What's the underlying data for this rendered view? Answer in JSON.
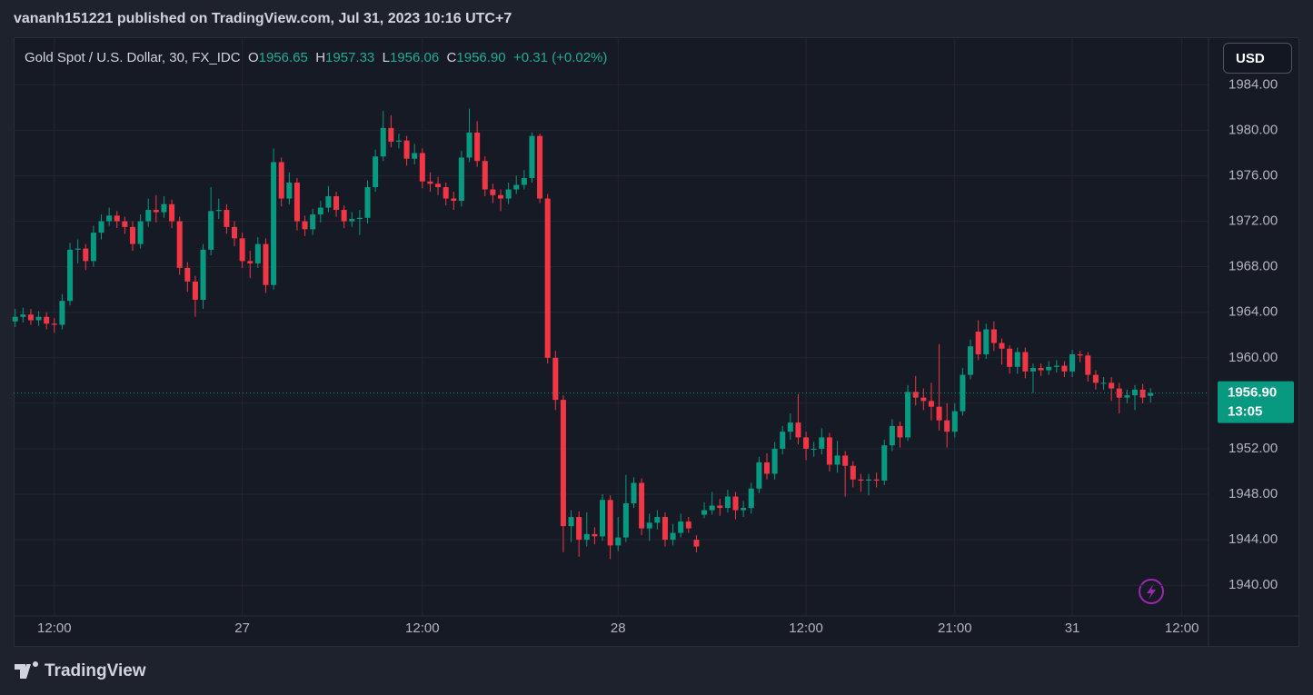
{
  "header": {
    "title": "vananh151221 published on TradingView.com, Jul 31, 2023 10:16 UTC+7"
  },
  "footer": {
    "logo": "TradingView"
  },
  "currency_button": "USD",
  "chart_data": {
    "type": "candlestick",
    "symbol": "Gold Spot / U.S. Dollar, 30, FX_IDC",
    "ohlc_names": [
      "O",
      "H",
      "L",
      "C"
    ],
    "ohlc_values": [
      "1956.65",
      "1957.33",
      "1956.06",
      "1956.90"
    ],
    "change": "+0.31 (+0.02%)",
    "last_price": {
      "value": 1956.9,
      "label": "1956.90"
    },
    "countdown": "13:05",
    "up_color": "#089981",
    "down_color": "#f23645",
    "grid": true,
    "ylim": [
      1937.3,
      1988.1
    ],
    "yticks": [
      {
        "value": 1940,
        "label": "1940.00"
      },
      {
        "value": 1944,
        "label": "1944.00"
      },
      {
        "value": 1948,
        "label": "1948.00"
      },
      {
        "value": 1952,
        "label": "1952.00"
      },
      {
        "value": 1956,
        "label": "1956.00"
      },
      {
        "value": 1960,
        "label": "1960.00"
      },
      {
        "value": 1964,
        "label": "1964.00"
      },
      {
        "value": 1968,
        "label": "1968.00"
      },
      {
        "value": 1972,
        "label": "1972.00"
      },
      {
        "value": 1976,
        "label": "1976.00"
      },
      {
        "value": 1980,
        "label": "1980.00"
      },
      {
        "value": 1984,
        "label": "1984.00"
      }
    ],
    "xlim": [
      -0.2,
      152.4
    ],
    "xticks": [
      {
        "value": 5,
        "label": "12:00"
      },
      {
        "value": 29,
        "label": "27"
      },
      {
        "value": 52,
        "label": "12:00"
      },
      {
        "value": 77,
        "label": "28"
      },
      {
        "value": 101,
        "label": "12:00"
      },
      {
        "value": 120,
        "label": "21:00"
      },
      {
        "value": 135,
        "label": "31"
      },
      {
        "value": 149,
        "label": "12:00"
      }
    ],
    "open": [
      1963.2,
      1963.6,
      1963.8,
      1963.3,
      1963.6,
      1963.0,
      1962.9,
      1965.0,
      1969.5,
      1969.6,
      1968.5,
      1971.0,
      1972.0,
      1972.5,
      1972.0,
      1971.5,
      1970.0,
      1972.0,
      1973.0,
      1972.8,
      1973.5,
      1972.0,
      1967.9,
      1966.7,
      1965.1,
      1969.5,
      1972.9,
      1973.0,
      1971.5,
      1970.5,
      1968.5,
      1968.3,
      1970.0,
      1966.4,
      1977.2,
      1974.0,
      1975.4,
      1972.0,
      1971.3,
      1972.6,
      1973.2,
      1974.2,
      1973.0,
      1972.0,
      1972.2,
      1972.3,
      1975.0,
      1977.7,
      1980.2,
      1979.0,
      1979.1,
      1977.5,
      1978.0,
      1975.5,
      1975.3,
      1975.0,
      1974.0,
      1973.8,
      1977.6,
      1979.8,
      1977.3,
      1974.8,
      1974.3,
      1974.0,
      1974.8,
      1975.2,
      1975.8,
      1979.5,
      1974.0,
      1960.0,
      1956.3,
      1945.2,
      1946.0,
      1944.0,
      1944.5,
      1944.3,
      1947.5,
      1943.5,
      1944.2,
      1947.2,
      1949.0,
      1945.0,
      1945.5,
      1946.0,
      1944.0,
      1944.6,
      1945.6,
      1944.0,
      1946.2,
      1946.6,
      1947.0,
      1946.8,
      1947.8,
      1946.6,
      1946.8,
      1948.5,
      1950.8,
      1949.8,
      1952.0,
      1953.5,
      1954.3,
      1953.0,
      1952.0,
      1952.0,
      1953.0,
      1950.6,
      1951.4,
      1950.5,
      1949.3,
      1949.2,
      1949.3,
      1949.2,
      1952.3,
      1954.0,
      1953.0,
      1957.0,
      1956.5,
      1956.2,
      1955.7,
      1954.5,
      1953.5,
      1955.3,
      1958.5,
      1962.3,
      1960.3,
      1962.5,
      1961.3,
      1960.8,
      1959.2,
      1960.5,
      1958.8,
      1959.1,
      1958.9,
      1959.2,
      1959.3,
      1958.8,
      1960.3,
      1960.2,
      1958.5,
      1957.8,
      1957.8,
      1957.3,
      1956.5,
      1956.7,
      1957.2,
      1956.65
    ],
    "high": [
      1964.3,
      1964.4,
      1964.3,
      1964.1,
      1964.0,
      1963.5,
      1965.6,
      1970.1,
      1970.4,
      1970.0,
      1971.6,
      1972.6,
      1973.2,
      1972.9,
      1972.4,
      1972.0,
      1972.6,
      1974.0,
      1974.3,
      1974.2,
      1973.9,
      1972.4,
      1968.4,
      1967.2,
      1970.0,
      1975.0,
      1974.0,
      1973.5,
      1972.0,
      1971.0,
      1969.4,
      1970.6,
      1970.5,
      1978.4,
      1977.6,
      1976.3,
      1975.8,
      1972.5,
      1973.1,
      1973.8,
      1975.1,
      1974.6,
      1973.4,
      1972.8,
      1973.0,
      1975.6,
      1978.3,
      1981.7,
      1981.3,
      1979.7,
      1979.5,
      1978.8,
      1978.4,
      1976.3,
      1975.9,
      1975.4,
      1974.6,
      1978.2,
      1981.9,
      1980.8,
      1977.7,
      1975.3,
      1974.8,
      1975.4,
      1976.0,
      1976.5,
      1979.8,
      1979.7,
      1974.4,
      1960.6,
      1956.7,
      1946.6,
      1946.5,
      1946.4,
      1945.1,
      1948.0,
      1947.9,
      1946.0,
      1949.7,
      1949.5,
      1949.4,
      1946.3,
      1946.6,
      1946.4,
      1945.4,
      1946.3,
      1946.0,
      1944.4,
      1947.3,
      1948.2,
      1947.6,
      1948.4,
      1948.2,
      1947.4,
      1949.0,
      1951.3,
      1951.6,
      1952.6,
      1954.0,
      1955.1,
      1956.8,
      1953.5,
      1952.6,
      1953.8,
      1953.4,
      1952.7,
      1951.8,
      1950.9,
      1949.8,
      1949.8,
      1949.9,
      1952.8,
      1954.6,
      1954.4,
      1957.6,
      1958.4,
      1957.3,
      1957.8,
      1961.2,
      1956.0,
      1956.0,
      1959.1,
      1961.6,
      1963.3,
      1963.0,
      1963.2,
      1961.7,
      1961.1,
      1960.9,
      1960.9,
      1959.5,
      1959.5,
      1959.7,
      1959.8,
      1959.7,
      1960.7,
      1960.6,
      1960.5,
      1958.9,
      1958.3,
      1958.3,
      1957.8,
      1957.2,
      1957.6,
      1957.7,
      1957.33
    ],
    "low": [
      1962.7,
      1963.1,
      1962.9,
      1962.8,
      1962.5,
      1962.2,
      1962.5,
      1964.6,
      1968.3,
      1967.7,
      1968.0,
      1970.4,
      1971.6,
      1971.4,
      1970.9,
      1969.4,
      1969.6,
      1971.5,
      1971.9,
      1972.3,
      1971.4,
      1967.3,
      1965.8,
      1963.6,
      1964.3,
      1969.0,
      1972.2,
      1970.9,
      1969.8,
      1967.9,
      1967.0,
      1967.9,
      1965.7,
      1966.0,
      1973.3,
      1973.5,
      1971.2,
      1970.7,
      1970.8,
      1971.9,
      1972.8,
      1972.4,
      1971.4,
      1971.5,
      1970.8,
      1971.8,
      1974.6,
      1977.3,
      1978.5,
      1978.4,
      1976.9,
      1977.0,
      1974.9,
      1974.6,
      1974.3,
      1973.4,
      1973.0,
      1973.3,
      1977.2,
      1976.8,
      1974.2,
      1973.6,
      1972.9,
      1973.5,
      1974.4,
      1974.8,
      1975.4,
      1973.6,
      1959.5,
      1955.4,
      1942.9,
      1943.8,
      1942.5,
      1943.4,
      1943.6,
      1943.9,
      1942.3,
      1943.0,
      1943.8,
      1946.8,
      1944.4,
      1943.9,
      1944.9,
      1943.4,
      1943.5,
      1944.2,
      1944.6,
      1942.9,
      1945.9,
      1946.2,
      1946.1,
      1946.4,
      1945.8,
      1946.0,
      1946.3,
      1948.1,
      1949.3,
      1949.3,
      1951.5,
      1952.8,
      1952.4,
      1951.0,
      1951.3,
      1951.5,
      1950.0,
      1949.9,
      1947.8,
      1948.6,
      1948.2,
      1947.9,
      1948.6,
      1948.8,
      1951.8,
      1952.1,
      1952.7,
      1955.8,
      1955.4,
      1954.5,
      1953.6,
      1952.1,
      1953.0,
      1954.9,
      1958.1,
      1959.8,
      1959.9,
      1960.6,
      1959.4,
      1958.6,
      1958.6,
      1958.2,
      1956.9,
      1958.4,
      1958.5,
      1958.7,
      1958.3,
      1958.3,
      1959.6,
      1957.9,
      1957.2,
      1957.2,
      1956.2,
      1955.1,
      1956.0,
      1955.4,
      1956.0,
      1956.06
    ],
    "close": [
      1963.6,
      1963.8,
      1963.3,
      1963.6,
      1963.0,
      1962.9,
      1965.0,
      1969.5,
      1969.6,
      1968.5,
      1971.0,
      1972.0,
      1972.5,
      1972.0,
      1971.5,
      1970.0,
      1972.0,
      1973.0,
      1972.8,
      1973.5,
      1972.0,
      1967.9,
      1966.7,
      1965.1,
      1969.5,
      1972.9,
      1973.0,
      1971.5,
      1970.5,
      1968.5,
      1968.3,
      1970.0,
      1966.4,
      1977.2,
      1974.0,
      1975.4,
      1972.0,
      1971.3,
      1972.6,
      1973.2,
      1974.2,
      1973.0,
      1972.0,
      1972.2,
      1972.3,
      1975.0,
      1977.7,
      1980.2,
      1979.0,
      1979.1,
      1977.5,
      1978.0,
      1975.5,
      1975.3,
      1975.0,
      1974.0,
      1973.8,
      1977.6,
      1979.8,
      1977.3,
      1974.8,
      1974.3,
      1974.0,
      1974.8,
      1975.2,
      1975.8,
      1979.5,
      1974.0,
      1960.0,
      1956.3,
      1945.2,
      1946.0,
      1944.0,
      1944.5,
      1944.3,
      1947.5,
      1943.5,
      1944.2,
      1947.2,
      1949.0,
      1945.0,
      1945.5,
      1946.0,
      1944.0,
      1944.6,
      1945.6,
      1945.0,
      1943.4,
      1946.6,
      1947.0,
      1946.8,
      1947.8,
      1946.6,
      1946.8,
      1948.5,
      1950.8,
      1949.8,
      1952.0,
      1953.5,
      1954.3,
      1953.0,
      1952.0,
      1952.0,
      1953.0,
      1950.6,
      1951.4,
      1950.5,
      1949.3,
      1949.2,
      1949.3,
      1949.2,
      1952.3,
      1954.0,
      1953.0,
      1957.0,
      1956.5,
      1956.2,
      1955.7,
      1954.5,
      1953.5,
      1955.3,
      1958.5,
      1961.0,
      1960.3,
      1962.5,
      1961.3,
      1960.8,
      1959.2,
      1960.5,
      1958.8,
      1959.1,
      1958.9,
      1959.2,
      1959.3,
      1958.8,
      1960.3,
      1960.2,
      1958.5,
      1957.8,
      1957.8,
      1957.3,
      1956.5,
      1956.7,
      1957.2,
      1956.5,
      1956.9
    ]
  }
}
